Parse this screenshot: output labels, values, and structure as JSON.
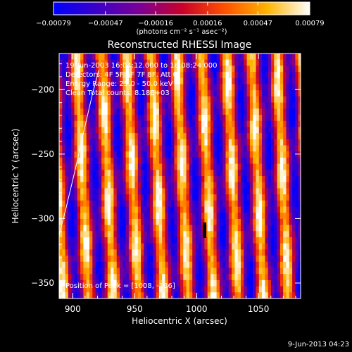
{
  "chart_data": {
    "type": "heatmap",
    "title": "Reconstructed RHESSI Image",
    "xlabel": "Heliocentric X (arcsec)",
    "ylabel": "Heliocentric Y (arcsec)",
    "xlim": [
      889,
      1084
    ],
    "ylim": [
      -362,
      -172
    ],
    "x_ticks": [
      900,
      950,
      1000,
      1050
    ],
    "y_ticks": [
      -200,
      -250,
      -300,
      -350
    ],
    "x_tick_labels": [
      "900",
      "950",
      "1000",
      "1050"
    ],
    "y_tick_labels": [
      "−200",
      "−250",
      "−300",
      "−350"
    ],
    "colorbar": {
      "min": -0.00079,
      "max": 0.00079,
      "tick_values": [
        -0.00079,
        -0.00047,
        -0.00016,
        0.00016,
        0.00047,
        0.00079
      ],
      "tick_labels": [
        "−0.00079",
        "−0.00047",
        "−0.00016",
        "0.00016",
        "0.00047",
        "0.00079"
      ],
      "unit_label": "(photons cm⁻² s⁻¹ asec⁻²)",
      "colors": [
        "#0000ff",
        "#3b00c8",
        "#7a0096",
        "#c8002c",
        "#ff5000",
        "#ffb400",
        "#ffffff"
      ]
    },
    "stripe_x_centers": [
      908,
      928,
      948,
      968,
      989,
      1009,
      1029,
      1049,
      1069
    ],
    "stripe_period_arcsec": 20.2,
    "limb_curve": {
      "x": [
        889,
        895,
        902,
        909,
        916,
        921
      ],
      "y": [
        -313,
        -290,
        -262,
        -232,
        -203,
        -185
      ]
    },
    "annotations": {
      "line1": "19-Jun-2003 16:04:12.000 to 16:08:24.000",
      "line2": "Detectors: 4F 5F 6F 7F 8F, Att 0",
      "line3": "Energy Range: 25.0 - 50.0 keV",
      "line4": "Clean    Total counts: 8.18E+03",
      "peak": "Position of Peak = [1008, -186]"
    }
  },
  "footer": {
    "timestamp": "9-Jun-2013 04:23"
  }
}
